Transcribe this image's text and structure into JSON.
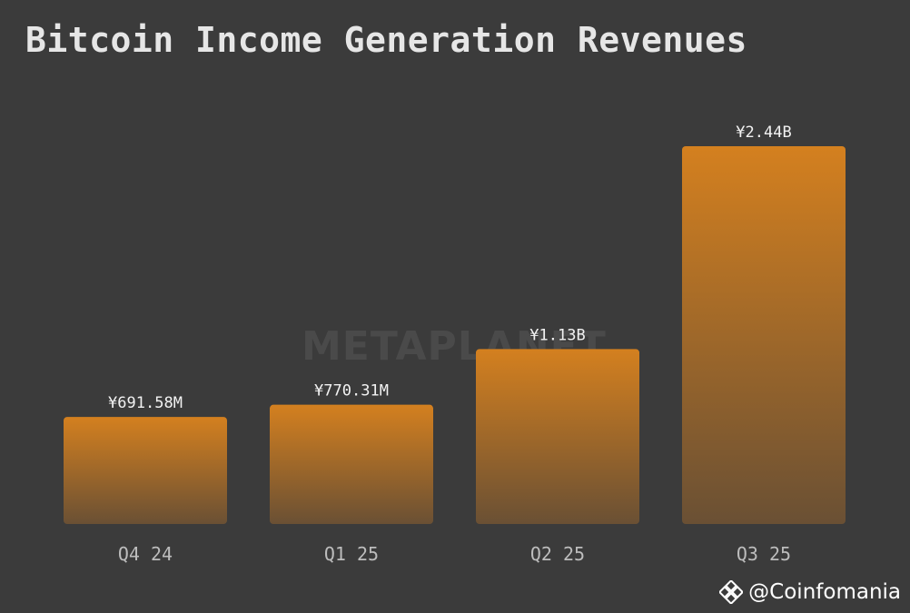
{
  "chart_data": {
    "type": "bar",
    "title": "Bitcoin Income Generation Revenues",
    "categories": [
      "Q4 24",
      "Q1 25",
      "Q2 25",
      "Q3 25"
    ],
    "values": [
      691.58,
      770.31,
      1130,
      2440
    ],
    "value_unit": "¥M",
    "data_labels": [
      "¥691.58M",
      "¥770.31M",
      "¥1.13B",
      "¥2.44B"
    ],
    "ylim": [
      0,
      2440
    ],
    "grid": false,
    "bar_color_top": "#d4801f",
    "bar_color_bottom": "#6a5034"
  },
  "watermark": "METAPLANET",
  "credit": {
    "text": "@Coinfomania",
    "icon": "binance-diamond-icon"
  },
  "colors": {
    "background": "#3b3b3b",
    "title": "#e6e6e6"
  }
}
